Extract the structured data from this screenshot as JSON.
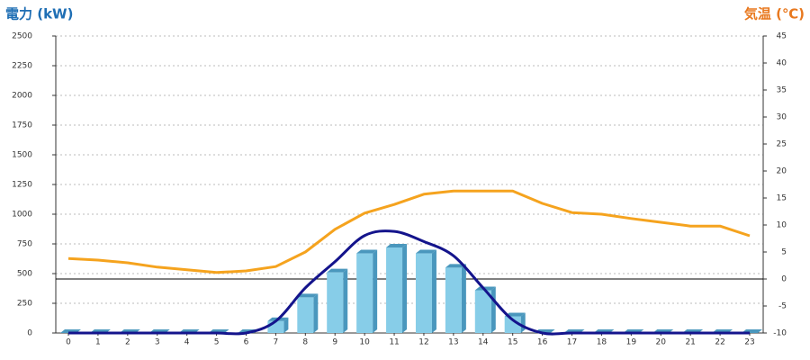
{
  "chart_data": {
    "type": "combo",
    "ylabel": "電力 (kW)",
    "y2label": "気温 (℃)",
    "categories": [
      "0",
      "1",
      "2",
      "3",
      "4",
      "5",
      "6",
      "7",
      "8",
      "9",
      "10",
      "11",
      "12",
      "13",
      "14",
      "15",
      "16",
      "17",
      "18",
      "19",
      "20",
      "21",
      "22",
      "23"
    ],
    "ylim": [
      0,
      2500
    ],
    "yticks": [
      0,
      250,
      500,
      750,
      1000,
      1250,
      1500,
      1750,
      2000,
      2250,
      2500
    ],
    "y2lim": [
      -10,
      45
    ],
    "y2ticks": [
      -10,
      -5,
      0,
      5,
      10,
      15,
      20,
      25,
      30,
      35,
      40,
      45
    ],
    "grid": true,
    "series": [
      {
        "type": "bar",
        "color": "#87cde8",
        "values": [
          0,
          0,
          0,
          0,
          0,
          0,
          0,
          100,
          300,
          510,
          670,
          720,
          670,
          550,
          360,
          140,
          0,
          0,
          0,
          0,
          0,
          0,
          0,
          0
        ]
      },
      {
        "type": "line",
        "smooth": true,
        "color": "#14148c",
        "values": [
          0,
          0,
          0,
          0,
          0,
          0,
          0,
          100,
          380,
          600,
          820,
          855,
          770,
          650,
          380,
          110,
          0,
          0,
          0,
          0,
          0,
          0,
          0,
          0
        ]
      },
      {
        "type": "line",
        "axis": "y2",
        "color": "#f5a31e",
        "values": [
          3.8,
          3.5,
          3,
          2.2,
          1.7,
          1.2,
          1.5,
          2.3,
          5,
          9.2,
          12.2,
          13.8,
          15.7,
          16.3,
          16.3,
          16.3,
          14,
          12.3,
          12,
          11.2,
          10.5,
          9.8,
          9.8,
          8
        ]
      }
    ]
  }
}
